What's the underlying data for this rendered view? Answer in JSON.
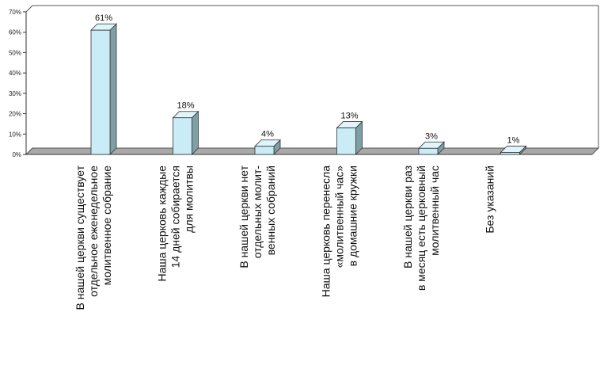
{
  "chart_data": {
    "type": "bar",
    "title": "",
    "xlabel": "",
    "ylabel": "",
    "ylim": [
      0,
      70
    ],
    "yticks": [
      "0%",
      "10%",
      "20%",
      "30%",
      "40%",
      "50%",
      "60%",
      "70%"
    ],
    "grid": false,
    "legend": "none",
    "bar_color": "#c9ecf7",
    "bar_side_color": "#7e9fa3",
    "bar_top_color": "#dff4fb",
    "wall_color": "#ffffff",
    "floor_color": "#a9a9a9",
    "categories": [
      {
        "lines": [
          "В нашей церкви существует",
          "отдельное еженедельное",
          "молитвенное собрание"
        ]
      },
      {
        "lines": [
          "Наша церковь каждые",
          "14 дней собирается",
          "для молитвы"
        ]
      },
      {
        "lines": [
          "В нашей церкви нет",
          "отдельных молит-",
          "венных собраний"
        ]
      },
      {
        "lines": [
          "Наша церковь перенесла",
          "«молитвенный час»",
          "в домашние кружки"
        ]
      },
      {
        "lines": [
          "В нашей церкви раз",
          "в месяц есть церковный",
          "молитвенный час"
        ]
      },
      {
        "lines": [
          "Без указаний"
        ]
      }
    ],
    "values": [
      61,
      18,
      4,
      13,
      3,
      1
    ],
    "data_labels": [
      "61%",
      "18%",
      "4%",
      "13%",
      "3%",
      "1%"
    ]
  }
}
